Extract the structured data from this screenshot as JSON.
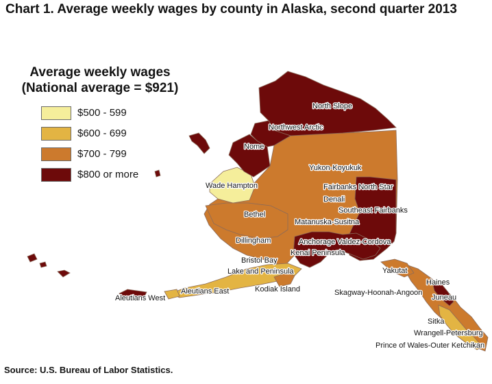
{
  "title": "Chart 1. Average weekly wages by county in Alaska, second quarter 2013",
  "legend": {
    "title_line1": "Average weekly wages",
    "title_line2": "(National average = $921)",
    "items": [
      {
        "label": "$500 - 599",
        "color": "#f5ee9b"
      },
      {
        "label": "$600 - 699",
        "color": "#e3b443"
      },
      {
        "label": "$700 - 799",
        "color": "#cc7a2d"
      },
      {
        "label": "$800 or more",
        "color": "#6d0a0a"
      }
    ]
  },
  "region_labels": {
    "north_slope": "North Slope",
    "northwest_arctic": "Northwest Arctic",
    "nome": "Nome",
    "yukon_koyukuk": "Yukon-Koyukuk",
    "wade_hampton": "Wade Hampton",
    "fairbanks": "Fairbanks North Star",
    "denali": "Denali",
    "southeast_fairbanks": "Southeast Fairbanks",
    "bethel": "Bethel",
    "matanuska": "Matanuska-Susitna",
    "dillingham": "Dillingham",
    "anchorage_valdez": "Anchorage Valdez-Cordova",
    "kenai": "Kenai Peninsula",
    "bristol_bay": "Bristol Bay",
    "yakutat": "Yakutat",
    "lake_peninsula": "Lake and Peninsula",
    "haines": "Haines",
    "skagway": "Skagway-Hoonah-Angoon",
    "juneau": "Juneau",
    "aleutians_east": "Aleutians East",
    "kodiak": "Kodiak Island",
    "aleutians_west": "Aleutians West",
    "sitka": "Sitka",
    "wrangell": "Wrangell-Petersburg",
    "prince_wales": "Prince of Wales-Outer Ketchikan"
  },
  "source": "Source: U.S. Bureau of Labor Statistics."
}
